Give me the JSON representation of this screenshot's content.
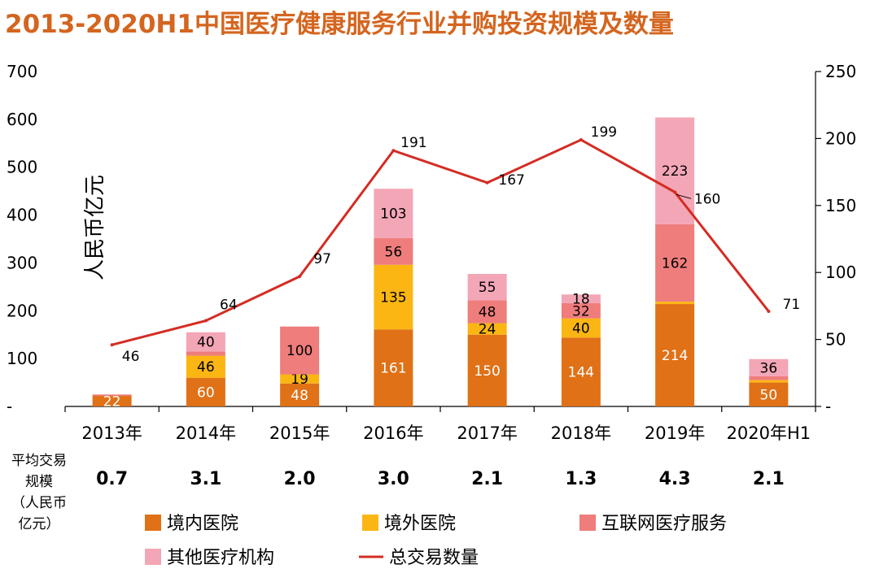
{
  "chart_data": {
    "type": "bar",
    "title": "2013-2020H1中国医疗健康服务行业并购投资规模及数量",
    "ylabel": "人民币亿元",
    "ylim": [
      0,
      700
    ],
    "y2lim": [
      0,
      250
    ],
    "yticks": [
      "-",
      "100",
      "200",
      "300",
      "400",
      "500",
      "600",
      "700"
    ],
    "y2ticks": [
      "-",
      "50",
      "100",
      "150",
      "200",
      "250"
    ],
    "categories": [
      "2013年",
      "2014年",
      "2015年",
      "2016年",
      "2017年",
      "2018年",
      "2019年",
      "2020年H1"
    ],
    "series": [
      {
        "name": "境内医院",
        "color": "#e07117",
        "values": [
          22,
          60,
          48,
          161,
          150,
          144,
          214,
          50
        ],
        "labels": [
          "22",
          "60",
          "48",
          "161",
          "150",
          "144",
          "214",
          "50"
        ]
      },
      {
        "name": "境外医院",
        "color": "#fbb613",
        "values": [
          0,
          46,
          19,
          135,
          24,
          40,
          5,
          5
        ],
        "labels": [
          "",
          "46",
          "19",
          "135",
          "24",
          "40",
          "",
          ""
        ]
      },
      {
        "name": "互联网医疗服务",
        "color": "#ee7d7c",
        "values": [
          3,
          9,
          100,
          56,
          48,
          32,
          162,
          8
        ],
        "labels": [
          "",
          "",
          "100",
          "56",
          "48",
          "32",
          "162",
          ""
        ]
      },
      {
        "name": "其他医疗机构",
        "color": "#f3a6b6",
        "values": [
          0,
          40,
          0,
          103,
          55,
          18,
          223,
          36
        ],
        "labels": [
          "",
          "40",
          "",
          "103",
          "55",
          "18",
          "223",
          "36"
        ]
      }
    ],
    "line": {
      "name": "总交易数量",
      "color": "#d42c23",
      "axis": "right",
      "values": [
        46,
        64,
        97,
        191,
        167,
        199,
        160,
        71
      ]
    },
    "avg_header": [
      "平均交易",
      "规模",
      "（人民币",
      "亿元）"
    ],
    "avg_values": [
      "0.7",
      "3.1",
      "2.0",
      "3.0",
      "2.1",
      "1.3",
      "4.3",
      "2.1"
    ],
    "legend_position": "bottom"
  }
}
